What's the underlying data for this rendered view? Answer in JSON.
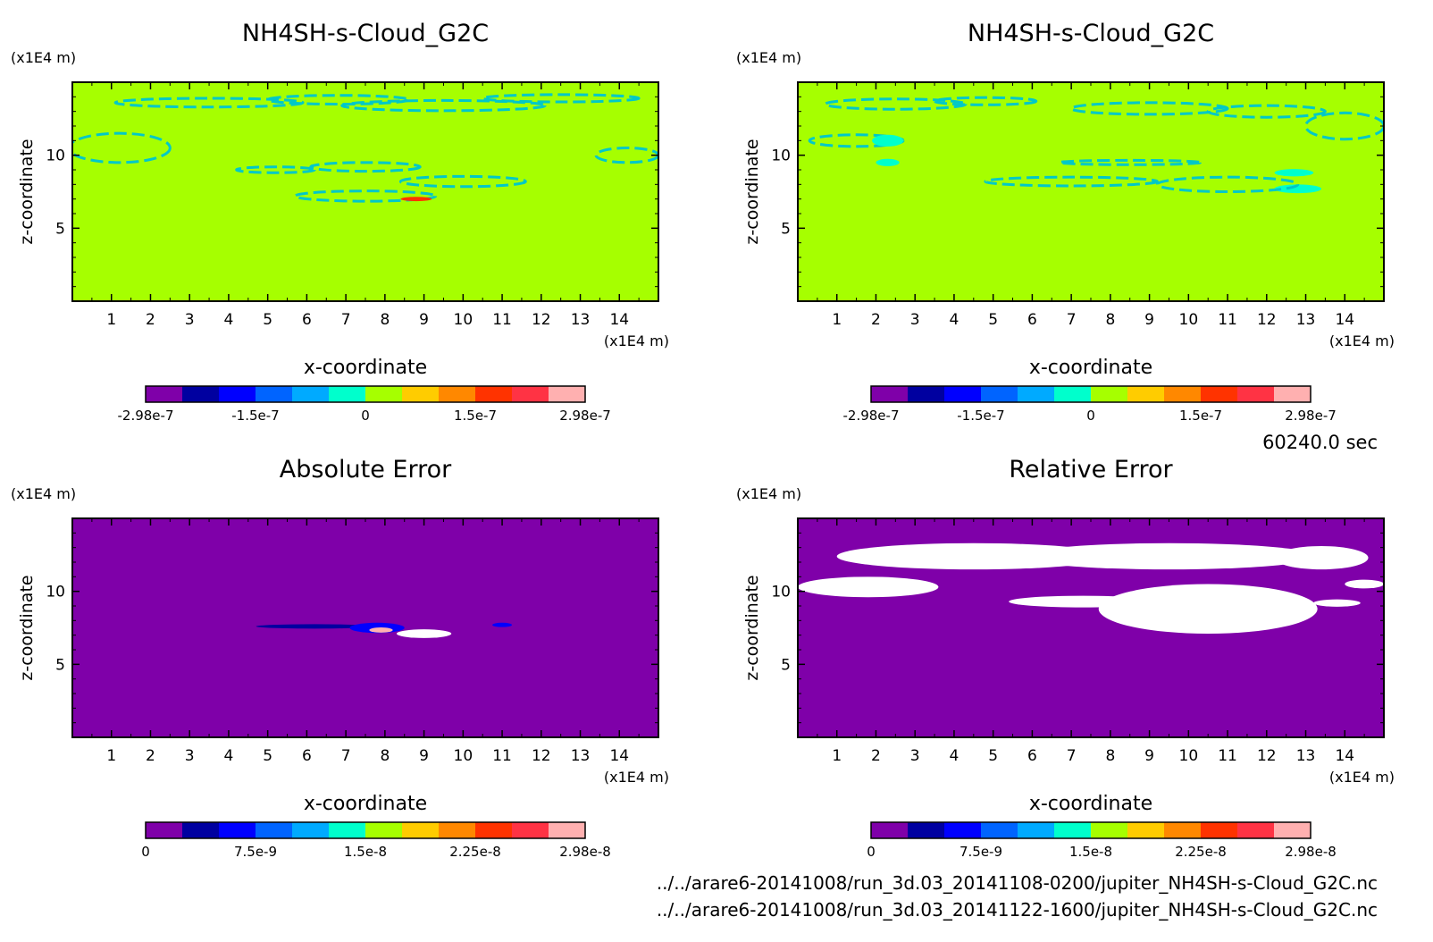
{
  "time_label": "60240.0 sec",
  "files": [
    "../../arare6-20141008/run_3d.03_20141108-0200/jupiter_NH4SH-s-Cloud_G2C.nc",
    "../../arare6-20141008/run_3d.03_20141122-1600/jupiter_NH4SH-s-Cloud_G2C.nc"
  ],
  "colors": {
    "background_zero": "#a6ff00",
    "error_zero": "#7f00a9",
    "contour_cyan": "#00c8c8",
    "missing_white": "#ffffff"
  },
  "colorbar_palette": [
    "#7f00a9",
    "#0000a0",
    "#0000ff",
    "#0064ff",
    "#00aaff",
    "#00ffcc",
    "#a6ff00",
    "#ffcc00",
    "#ff8800",
    "#ff3300",
    "#ff3344",
    "#ffb0b0"
  ],
  "chart_data": [
    {
      "type": "heatmap",
      "title": "NH4SH-s-Cloud_G2C",
      "xlabel": "x-coordinate",
      "ylabel": "z-coordinate",
      "x_unit": "(x1E4 m)",
      "y_unit": "(x1E4 m)",
      "xlim": [
        0,
        15
      ],
      "ylim": [
        0,
        15
      ],
      "xticks": [
        "1",
        "2",
        "3",
        "4",
        "5",
        "6",
        "7",
        "8",
        "9",
        "10",
        "11",
        "12",
        "13",
        "14"
      ],
      "yticks": [
        "5",
        "10"
      ],
      "colorbar_labels": [
        "-2.98e-7",
        "-1.5e-7",
        "0",
        "1.5e-7",
        "2.98e-7"
      ],
      "clim": [
        -2.98e-07,
        2.98e-07
      ]
    },
    {
      "type": "heatmap",
      "title": "NH4SH-s-Cloud_G2C",
      "xlabel": "x-coordinate",
      "ylabel": "z-coordinate",
      "x_unit": "(x1E4 m)",
      "y_unit": "(x1E4 m)",
      "xlim": [
        0,
        15
      ],
      "ylim": [
        0,
        15
      ],
      "xticks": [
        "1",
        "2",
        "3",
        "4",
        "5",
        "6",
        "7",
        "8",
        "9",
        "10",
        "11",
        "12",
        "13",
        "14"
      ],
      "yticks": [
        "5",
        "10"
      ],
      "colorbar_labels": [
        "-2.98e-7",
        "-1.5e-7",
        "0",
        "1.5e-7",
        "2.98e-7"
      ],
      "clim": [
        -2.98e-07,
        2.98e-07
      ]
    },
    {
      "type": "heatmap",
      "title": "Absolute Error",
      "xlabel": "x-coordinate",
      "ylabel": "z-coordinate",
      "x_unit": "(x1E4 m)",
      "y_unit": "(x1E4 m)",
      "xlim": [
        0,
        15
      ],
      "ylim": [
        0,
        15
      ],
      "xticks": [
        "1",
        "2",
        "3",
        "4",
        "5",
        "6",
        "7",
        "8",
        "9",
        "10",
        "11",
        "12",
        "13",
        "14"
      ],
      "yticks": [
        "5",
        "10"
      ],
      "colorbar_labels": [
        "0",
        "7.5e-9",
        "1.5e-8",
        "2.25e-8",
        "2.98e-8"
      ],
      "clim": [
        0,
        2.98e-08
      ]
    },
    {
      "type": "heatmap",
      "title": "Relative Error",
      "xlabel": "x-coordinate",
      "ylabel": "z-coordinate",
      "x_unit": "(x1E4 m)",
      "y_unit": "(x1E4 m)",
      "xlim": [
        0,
        15
      ],
      "ylim": [
        0,
        15
      ],
      "xticks": [
        "1",
        "2",
        "3",
        "4",
        "5",
        "6",
        "7",
        "8",
        "9",
        "10",
        "11",
        "12",
        "13",
        "14"
      ],
      "yticks": [
        "5",
        "10"
      ],
      "colorbar_labels": [
        "0",
        "7.5e-9",
        "1.5e-8",
        "2.25e-8",
        "2.98e-8"
      ],
      "clim": [
        0,
        2.98e-08
      ]
    }
  ]
}
